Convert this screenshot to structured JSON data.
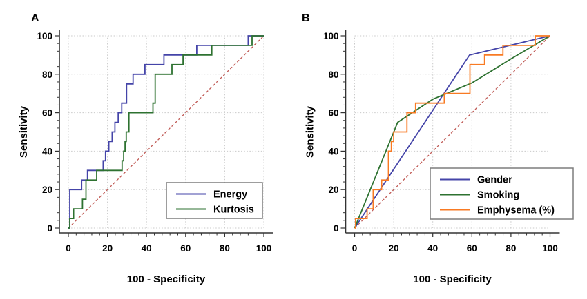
{
  "figure": {
    "background": "#ffffff",
    "description": "Two-panel ROC curve figure"
  },
  "style": {
    "axis_color": "#333333",
    "grid_color": "#c9c9c9",
    "text_color": "#000000",
    "legend_border_color": "#7d7d7d",
    "reference_line_color": "#c05a55"
  },
  "chart_data": [
    {
      "panel_label": "A",
      "type": "line",
      "subtype": "roc-step",
      "xlabel": "100 - Specificity",
      "ylabel": "Sensitivity",
      "xlim": [
        0,
        100
      ],
      "ylim": [
        0,
        100
      ],
      "x_ticks": [
        0,
        20,
        40,
        60,
        80,
        100
      ],
      "y_ticks": [
        0,
        20,
        40,
        60,
        80,
        100
      ],
      "minor_tick_step": 4,
      "grid": true,
      "legend_position": "bottom-right",
      "reference_line": {
        "from": [
          0,
          0
        ],
        "to": [
          100,
          100
        ],
        "style": "dashed"
      },
      "series": [
        {
          "name": "Energy",
          "color": "#4444a8",
          "curve": "step",
          "points": [
            [
              0,
              0
            ],
            [
              0.7,
              0
            ],
            [
              0.7,
              20
            ],
            [
              6.8,
              20
            ],
            [
              6.8,
              25
            ],
            [
              9.8,
              25
            ],
            [
              9.8,
              30
            ],
            [
              17.8,
              30
            ],
            [
              17.8,
              35
            ],
            [
              19,
              35
            ],
            [
              19,
              40
            ],
            [
              20.7,
              40
            ],
            [
              20.7,
              45
            ],
            [
              22.4,
              45
            ],
            [
              22.4,
              50
            ],
            [
              23.8,
              50
            ],
            [
              23.8,
              55
            ],
            [
              25.5,
              55
            ],
            [
              25.5,
              60
            ],
            [
              27.3,
              60
            ],
            [
              27.3,
              65
            ],
            [
              29.8,
              65
            ],
            [
              29.8,
              75
            ],
            [
              33.1,
              75
            ],
            [
              33.1,
              80
            ],
            [
              39.2,
              80
            ],
            [
              39.2,
              85
            ],
            [
              48.9,
              85
            ],
            [
              48.9,
              90
            ],
            [
              65.7,
              90
            ],
            [
              65.7,
              95
            ],
            [
              92,
              95
            ],
            [
              92,
              100
            ],
            [
              100,
              100
            ]
          ]
        },
        {
          "name": "Kurtosis",
          "color": "#2e7231",
          "curve": "step",
          "points": [
            [
              0,
              0
            ],
            [
              0.7,
              0
            ],
            [
              0.7,
              5
            ],
            [
              2.7,
              5
            ],
            [
              2.7,
              10
            ],
            [
              7.2,
              10
            ],
            [
              7.2,
              15
            ],
            [
              9,
              15
            ],
            [
              9,
              25
            ],
            [
              14.5,
              25
            ],
            [
              14.5,
              30
            ],
            [
              27.5,
              30
            ],
            [
              27.5,
              35
            ],
            [
              28.3,
              35
            ],
            [
              28.3,
              40
            ],
            [
              29,
              40
            ],
            [
              29,
              45
            ],
            [
              29.6,
              45
            ],
            [
              29.6,
              50
            ],
            [
              31,
              50
            ],
            [
              31,
              60
            ],
            [
              43.3,
              60
            ],
            [
              43.3,
              65
            ],
            [
              44.4,
              65
            ],
            [
              44.4,
              80
            ],
            [
              53,
              80
            ],
            [
              53,
              85
            ],
            [
              58.7,
              85
            ],
            [
              58.7,
              90
            ],
            [
              73.4,
              90
            ],
            [
              73.4,
              95
            ],
            [
              94,
              95
            ],
            [
              94,
              100
            ],
            [
              100,
              100
            ]
          ]
        }
      ]
    },
    {
      "panel_label": "B",
      "type": "line",
      "subtype": "roc-step",
      "xlabel": "100 - Specificity",
      "ylabel": "Sensitivity",
      "xlim": [
        0,
        100
      ],
      "ylim": [
        0,
        100
      ],
      "x_ticks": [
        0,
        20,
        40,
        60,
        80,
        100
      ],
      "y_ticks": [
        0,
        20,
        40,
        60,
        80,
        100
      ],
      "minor_tick_step": 4,
      "grid": true,
      "legend_position": "bottom-right",
      "reference_line": {
        "from": [
          0,
          0
        ],
        "to": [
          100,
          100
        ],
        "style": "dashed"
      },
      "series": [
        {
          "name": "Gender",
          "color": "#4444a8",
          "curve": "line",
          "points": [
            [
              0,
              0
            ],
            [
              58.8,
              90
            ],
            [
              100,
              100
            ]
          ]
        },
        {
          "name": "Smoking",
          "color": "#2e7231",
          "curve": "line",
          "points": [
            [
              0,
              0
            ],
            [
              22,
              55
            ],
            [
              40,
              67
            ],
            [
              60,
              75.5
            ],
            [
              80,
              88
            ],
            [
              100,
              100
            ]
          ]
        },
        {
          "name": "Emphysema (%)",
          "color": "#f87a23",
          "curve": "step",
          "points": [
            [
              0,
              0
            ],
            [
              0.5,
              0
            ],
            [
              0.5,
              5
            ],
            [
              6.4,
              5
            ],
            [
              6.4,
              10
            ],
            [
              9.5,
              10
            ],
            [
              9.5,
              20
            ],
            [
              13.8,
              20
            ],
            [
              13.8,
              25
            ],
            [
              17.3,
              25
            ],
            [
              17.3,
              40
            ],
            [
              18.8,
              40
            ],
            [
              18.8,
              45
            ],
            [
              20,
              45
            ],
            [
              20,
              50
            ],
            [
              26.8,
              50
            ],
            [
              26.8,
              60
            ],
            [
              31.2,
              60
            ],
            [
              31.2,
              65
            ],
            [
              45.9,
              65
            ],
            [
              45.9,
              70
            ],
            [
              59,
              70
            ],
            [
              59,
              85
            ],
            [
              66.5,
              85
            ],
            [
              66.5,
              90
            ],
            [
              75.9,
              90
            ],
            [
              75.9,
              95
            ],
            [
              92.4,
              95
            ],
            [
              92.4,
              100
            ],
            [
              100,
              100
            ]
          ]
        }
      ]
    }
  ]
}
